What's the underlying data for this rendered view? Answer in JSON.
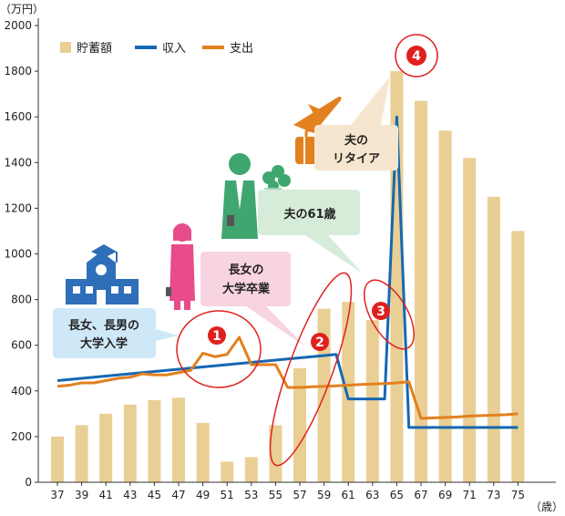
{
  "chart_data": {
    "type": "bar",
    "y_unit": "（万円）",
    "x_unit": "（歳）",
    "ylim": [
      0,
      2000
    ],
    "yticks": [
      0,
      200,
      400,
      600,
      800,
      1000,
      1200,
      1400,
      1600,
      1800,
      2000
    ],
    "categories": [
      "37",
      "39",
      "41",
      "43",
      "45",
      "47",
      "49",
      "51",
      "53",
      "55",
      "57",
      "59",
      "61",
      "63",
      "65",
      "67",
      "69",
      "71",
      "73",
      "75"
    ],
    "x_ages": [
      37,
      38,
      39,
      40,
      41,
      42,
      43,
      44,
      45,
      46,
      47,
      48,
      49,
      50,
      51,
      52,
      53,
      54,
      55,
      56,
      57,
      58,
      59,
      60,
      61,
      62,
      63,
      64,
      65,
      66,
      67,
      68,
      69,
      70,
      71,
      72,
      73,
      74,
      75
    ],
    "savings": {
      "name": "貯蓄額",
      "color": "#e9cf94",
      "values": [
        200,
        250,
        300,
        340,
        360,
        370,
        260,
        90,
        110,
        250,
        500,
        760,
        790,
        710,
        1800,
        1670,
        1540,
        1420,
        1250,
        1100
      ]
    },
    "income": {
      "name": "収入",
      "color": "#1668b2",
      "values": [
        445,
        450,
        455,
        460,
        465,
        470,
        475,
        480,
        485,
        490,
        495,
        500,
        505,
        510,
        515,
        520,
        525,
        530,
        535,
        540,
        545,
        550,
        555,
        560,
        365,
        365,
        365,
        365,
        1600,
        240,
        240,
        240,
        240,
        240,
        240,
        240,
        240,
        240,
        240
      ]
    },
    "expense": {
      "name": "支出",
      "color": "#e3801f",
      "values": [
        420,
        425,
        435,
        435,
        445,
        455,
        460,
        475,
        470,
        470,
        480,
        490,
        565,
        550,
        560,
        635,
        515,
        515,
        515,
        415,
        415,
        418,
        420,
        422,
        425,
        428,
        430,
        432,
        435,
        440,
        280,
        282,
        284,
        286,
        290,
        292,
        294,
        296,
        300
      ]
    },
    "legend": [
      "貯蓄額",
      "収入",
      "支出"
    ],
    "annotations": [
      {
        "line1": "長女、長男の",
        "line2": "大学入学"
      },
      {
        "line1": "長女の",
        "line2": "大学卒業"
      },
      {
        "line1": "夫の61歳",
        "line2": ""
      },
      {
        "line1": "夫の",
        "line2": "リタイア"
      }
    ],
    "markers": [
      "1",
      "2",
      "3",
      "4"
    ]
  }
}
